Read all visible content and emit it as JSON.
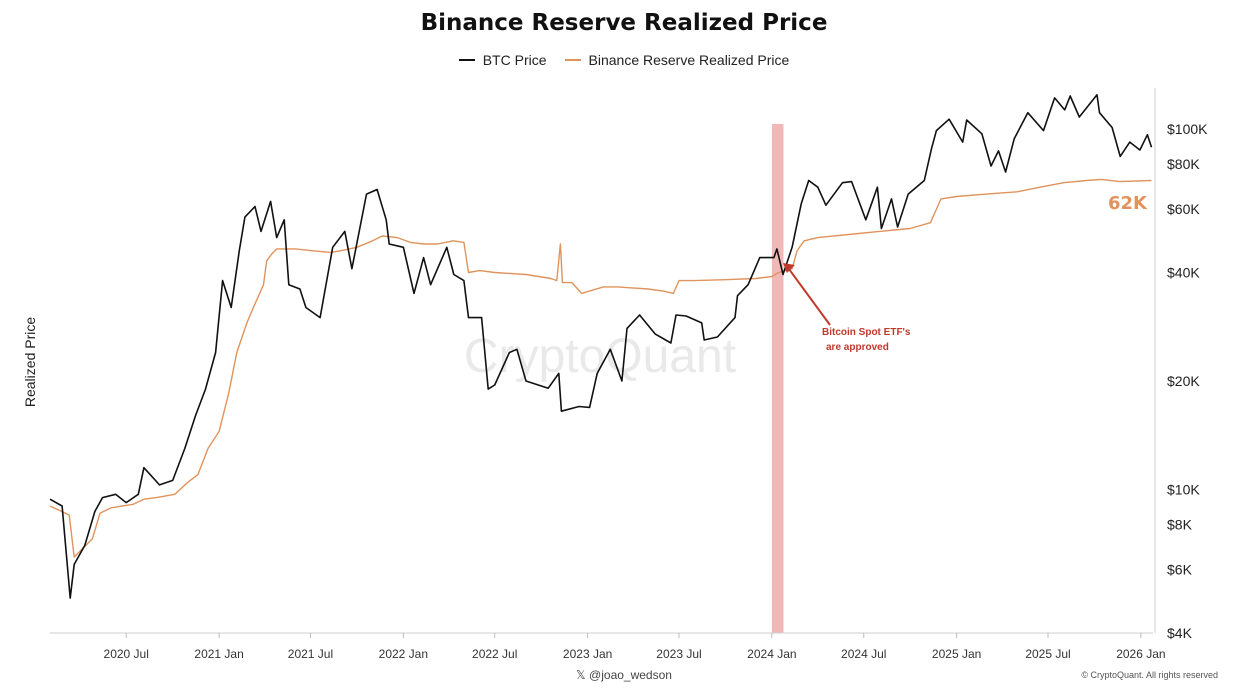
{
  "chart_data": {
    "type": "line",
    "title": "Binance Reserve Realized Price",
    "ylabel": "Realized Price",
    "yscale": "log",
    "ylim": [
      4000,
      130000
    ],
    "xlim": [
      "2020-02-01",
      "2026-01-25"
    ],
    "x_tick_labels": [
      "2020 Jul",
      "2021 Jan",
      "2021 Jul",
      "2022 Jan",
      "2022 Jul",
      "2023 Jan",
      "2023 Jul",
      "2024 Jan",
      "2024 Jul",
      "2025 Jan",
      "2025 Jul",
      "2026 Jan"
    ],
    "y_ticks": [
      {
        "value": 4000,
        "label": "$4K"
      },
      {
        "value": 6000,
        "label": "$6K"
      },
      {
        "value": 8000,
        "label": "$8K"
      },
      {
        "value": 10000,
        "label": "$10K"
      },
      {
        "value": 20000,
        "label": "$20K"
      },
      {
        "value": 40000,
        "label": "$40K"
      },
      {
        "value": 60000,
        "label": "$60K"
      },
      {
        "value": 80000,
        "label": "$80K"
      },
      {
        "value": 100000,
        "label": "$100K"
      }
    ],
    "series": [
      {
        "name": "BTC Price",
        "color": "#111111",
        "points": [
          [
            "2020-02-01",
            9400
          ],
          [
            "2020-02-25",
            9000
          ],
          [
            "2020-03-12",
            5000
          ],
          [
            "2020-03-20",
            6200
          ],
          [
            "2020-04-10",
            7000
          ],
          [
            "2020-04-30",
            8700
          ],
          [
            "2020-05-15",
            9500
          ],
          [
            "2020-06-10",
            9700
          ],
          [
            "2020-07-01",
            9200
          ],
          [
            "2020-07-25",
            9700
          ],
          [
            "2020-08-05",
            11500
          ],
          [
            "2020-09-05",
            10300
          ],
          [
            "2020-10-01",
            10600
          ],
          [
            "2020-10-25",
            13000
          ],
          [
            "2020-11-15",
            16000
          ],
          [
            "2020-12-05",
            19000
          ],
          [
            "2020-12-25",
            24000
          ],
          [
            "2021-01-08",
            38000
          ],
          [
            "2021-01-25",
            32000
          ],
          [
            "2021-02-10",
            46000
          ],
          [
            "2021-02-21",
            57000
          ],
          [
            "2021-03-13",
            61000
          ],
          [
            "2021-03-25",
            52000
          ],
          [
            "2021-04-13",
            63000
          ],
          [
            "2021-04-25",
            50000
          ],
          [
            "2021-05-10",
            56000
          ],
          [
            "2021-05-19",
            37000
          ],
          [
            "2021-06-10",
            36000
          ],
          [
            "2021-06-22",
            32000
          ],
          [
            "2021-07-20",
            30000
          ],
          [
            "2021-08-14",
            47000
          ],
          [
            "2021-09-07",
            52000
          ],
          [
            "2021-09-21",
            41000
          ],
          [
            "2021-10-20",
            66000
          ],
          [
            "2021-11-10",
            68000
          ],
          [
            "2021-11-28",
            56000
          ],
          [
            "2021-12-04",
            48000
          ],
          [
            "2022-01-01",
            47000
          ],
          [
            "2022-01-22",
            35000
          ],
          [
            "2022-02-10",
            44000
          ],
          [
            "2022-02-24",
            37000
          ],
          [
            "2022-03-28",
            47000
          ],
          [
            "2022-04-11",
            39500
          ],
          [
            "2022-05-01",
            38000
          ],
          [
            "2022-05-10",
            30000
          ],
          [
            "2022-06-05",
            30000
          ],
          [
            "2022-06-18",
            19000
          ],
          [
            "2022-07-01",
            19500
          ],
          [
            "2022-07-30",
            24000
          ],
          [
            "2022-08-14",
            24500
          ],
          [
            "2022-09-01",
            20000
          ],
          [
            "2022-10-15",
            19100
          ],
          [
            "2022-11-05",
            21000
          ],
          [
            "2022-11-10",
            16500
          ],
          [
            "2022-12-15",
            17000
          ],
          [
            "2023-01-05",
            16900
          ],
          [
            "2023-01-20",
            21000
          ],
          [
            "2023-02-15",
            24500
          ],
          [
            "2023-03-10",
            20000
          ],
          [
            "2023-03-20",
            28000
          ],
          [
            "2023-04-14",
            30500
          ],
          [
            "2023-05-15",
            27000
          ],
          [
            "2023-06-15",
            25500
          ],
          [
            "2023-06-25",
            30500
          ],
          [
            "2023-07-15",
            30300
          ],
          [
            "2023-08-15",
            29000
          ],
          [
            "2023-08-20",
            26000
          ],
          [
            "2023-09-15",
            26500
          ],
          [
            "2023-10-20",
            30000
          ],
          [
            "2023-10-25",
            34500
          ],
          [
            "2023-11-15",
            37000
          ],
          [
            "2023-12-08",
            44000
          ],
          [
            "2024-01-05",
            44000
          ],
          [
            "2024-01-11",
            46500
          ],
          [
            "2024-01-23",
            39500
          ],
          [
            "2024-02-10",
            47000
          ],
          [
            "2024-02-28",
            62000
          ],
          [
            "2024-03-14",
            72000
          ],
          [
            "2024-04-01",
            69000
          ],
          [
            "2024-04-17",
            61500
          ],
          [
            "2024-05-20",
            71000
          ],
          [
            "2024-06-07",
            71500
          ],
          [
            "2024-07-05",
            56000
          ],
          [
            "2024-07-28",
            69000
          ],
          [
            "2024-08-05",
            53000
          ],
          [
            "2024-08-25",
            64000
          ],
          [
            "2024-09-06",
            53500
          ],
          [
            "2024-09-27",
            66000
          ],
          [
            "2024-10-29",
            72000
          ],
          [
            "2024-11-12",
            88000
          ],
          [
            "2024-11-22",
            99000
          ],
          [
            "2024-12-17",
            106500
          ],
          [
            "2025-01-13",
            92000
          ],
          [
            "2025-01-21",
            106000
          ],
          [
            "2025-02-20",
            97000
          ],
          [
            "2025-03-10",
            79000
          ],
          [
            "2025-03-25",
            87000
          ],
          [
            "2025-04-08",
            76000
          ],
          [
            "2025-04-25",
            94000
          ],
          [
            "2025-05-22",
            111000
          ],
          [
            "2025-06-22",
            99000
          ],
          [
            "2025-07-14",
            122000
          ],
          [
            "2025-08-03",
            113000
          ],
          [
            "2025-08-14",
            123500
          ],
          [
            "2025-09-01",
            108000
          ],
          [
            "2025-10-06",
            124500
          ],
          [
            "2025-10-11",
            111000
          ],
          [
            "2025-11-05",
            101000
          ],
          [
            "2025-11-21",
            84000
          ],
          [
            "2025-12-10",
            92000
          ],
          [
            "2025-12-30",
            87500
          ],
          [
            "2026-01-14",
            96500
          ],
          [
            "2026-01-22",
            89000
          ]
        ]
      },
      {
        "name": "Binance Reserve Realized Price",
        "color": "#e0935c",
        "points": [
          [
            "2020-02-01",
            9000
          ],
          [
            "2020-03-10",
            8500
          ],
          [
            "2020-03-20",
            6500
          ],
          [
            "2020-04-25",
            7300
          ],
          [
            "2020-05-10",
            8600
          ],
          [
            "2020-06-01",
            8900
          ],
          [
            "2020-07-15",
            9100
          ],
          [
            "2020-08-05",
            9400
          ],
          [
            "2020-08-30",
            9500
          ],
          [
            "2020-10-05",
            9700
          ],
          [
            "2020-11-01",
            10500
          ],
          [
            "2020-11-20",
            11000
          ],
          [
            "2020-12-10",
            13000
          ],
          [
            "2021-01-01",
            14500
          ],
          [
            "2021-01-20",
            18500
          ],
          [
            "2021-02-05",
            24000
          ],
          [
            "2021-02-25",
            29000
          ],
          [
            "2021-03-10",
            32000
          ],
          [
            "2021-03-30",
            37000
          ],
          [
            "2021-04-05",
            43000
          ],
          [
            "2021-04-15",
            45000
          ],
          [
            "2021-04-25",
            46500
          ],
          [
            "2021-06-01",
            46500
          ],
          [
            "2021-07-01",
            46000
          ],
          [
            "2021-08-10",
            45500
          ],
          [
            "2021-09-01",
            46000
          ],
          [
            "2021-10-01",
            47000
          ],
          [
            "2021-11-01",
            49000
          ],
          [
            "2021-11-20",
            50500
          ],
          [
            "2021-12-20",
            50000
          ],
          [
            "2022-01-15",
            48500
          ],
          [
            "2022-02-10",
            48000
          ],
          [
            "2022-03-10",
            48000
          ],
          [
            "2022-04-10",
            49000
          ],
          [
            "2022-05-01",
            48500
          ],
          [
            "2022-05-10",
            40000
          ],
          [
            "2022-06-01",
            40500
          ],
          [
            "2022-07-01",
            40000
          ],
          [
            "2022-09-01",
            39500
          ],
          [
            "2022-10-20",
            38500
          ],
          [
            "2022-11-01",
            38000
          ],
          [
            "2022-11-08",
            48000
          ],
          [
            "2022-11-12",
            37500
          ],
          [
            "2022-12-01",
            37500
          ],
          [
            "2022-12-20",
            35000
          ],
          [
            "2023-02-01",
            36500
          ],
          [
            "2023-03-01",
            36500
          ],
          [
            "2023-05-01",
            36000
          ],
          [
            "2023-06-01",
            35500
          ],
          [
            "2023-06-20",
            35000
          ],
          [
            "2023-07-01",
            38000
          ],
          [
            "2023-08-01",
            38000
          ],
          [
            "2023-10-01",
            38200
          ],
          [
            "2023-12-01",
            38500
          ],
          [
            "2024-01-01",
            39000
          ],
          [
            "2024-01-15",
            40000
          ],
          [
            "2024-02-10",
            41000
          ],
          [
            "2024-02-20",
            46000
          ],
          [
            "2024-03-05",
            49000
          ],
          [
            "2024-04-01",
            50000
          ],
          [
            "2024-06-01",
            51000
          ],
          [
            "2024-08-01",
            52000
          ],
          [
            "2024-10-01",
            53000
          ],
          [
            "2024-11-10",
            55000
          ],
          [
            "2024-12-01",
            64000
          ],
          [
            "2025-01-01",
            65000
          ],
          [
            "2025-03-01",
            66000
          ],
          [
            "2025-05-01",
            67000
          ],
          [
            "2025-06-15",
            69000
          ],
          [
            "2025-08-01",
            71000
          ],
          [
            "2025-09-15",
            72000
          ],
          [
            "2025-10-15",
            72500
          ],
          [
            "2025-11-20",
            71500
          ],
          [
            "2026-01-22",
            72000
          ]
        ]
      }
    ],
    "highlight_band": {
      "from": "2024-01-01",
      "to": "2024-01-24",
      "color": "#f1b0b0"
    },
    "annotations": [
      {
        "text": "Bitcoin Spot ETF's are approved",
        "lines": [
          "Bitcoin Spot ETF's",
          "are approved"
        ],
        "color": "#c0392b",
        "arrow_to": "2024-01-23"
      },
      {
        "text": "62K",
        "color": "#e0935c"
      }
    ],
    "watermark": "CryptoQuant",
    "legend_position": "top-center",
    "grid": false
  },
  "footer": {
    "source": "𝕏 @joao_wedson",
    "rights": "© CryptoQuant. All rights reserved"
  }
}
